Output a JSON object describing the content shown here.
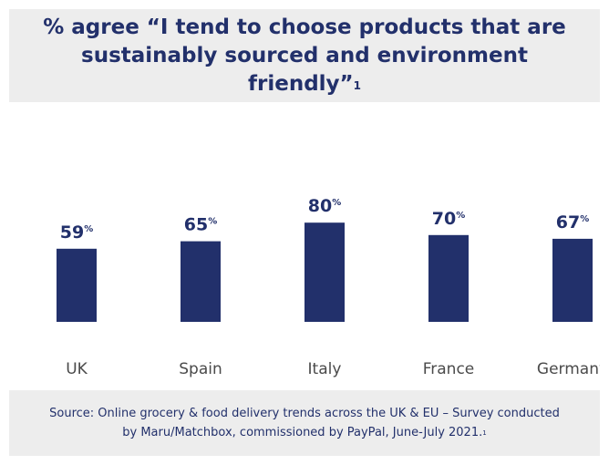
{
  "title": {
    "text": "% agree “I tend to choose products that are sustainably sourced and environment friendly”",
    "footnote_marker": "1"
  },
  "chart_data": {
    "type": "bar",
    "categories": [
      "UK",
      "Spain",
      "Italy",
      "France",
      "Germany"
    ],
    "values": [
      59,
      65,
      80,
      70,
      67
    ],
    "value_suffix": "%",
    "ylim": [
      0,
      100
    ],
    "grid": false,
    "bar_color": "#22306b",
    "label_color": "#22306b",
    "category_label_color": "#4a4a4a"
  },
  "source": {
    "text": "Source: Online grocery & food delivery trends across the UK & EU – Survey conducted by Maru/Matchbox, commissioned by PayPal, June-July 2021.",
    "footnote_marker": "1"
  },
  "colors": {
    "header_bg": "#ededed",
    "brand_navy": "#22306b"
  }
}
